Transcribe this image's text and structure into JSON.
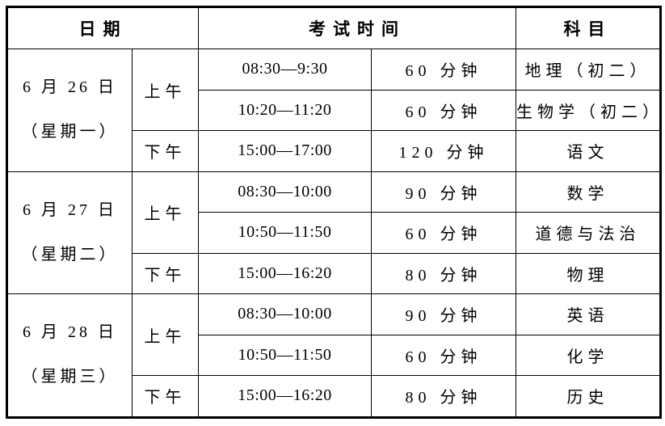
{
  "table": {
    "headers": {
      "date": "日期",
      "exam_time": "考试时间",
      "subject": "科目"
    },
    "groups": [
      {
        "date_line1": "6 月 26 日",
        "date_line2": "（星期一）",
        "sessions": [
          {
            "period": "上午",
            "rows": [
              {
                "time": "08:30—9:30",
                "duration": "60 分钟",
                "subject": "地理（初二）"
              },
              {
                "time": "10:20—11:20",
                "duration": "60 分钟",
                "subject": "生物学（初二）"
              }
            ]
          },
          {
            "period": "下午",
            "rows": [
              {
                "time": "15:00—17:00",
                "duration": "120 分钟",
                "subject": "语文"
              }
            ]
          }
        ]
      },
      {
        "date_line1": "6 月 27 日",
        "date_line2": "（星期二）",
        "sessions": [
          {
            "period": "上午",
            "rows": [
              {
                "time": "08:30—10:00",
                "duration": "90 分钟",
                "subject": "数学"
              },
              {
                "time": "10:50—11:50",
                "duration": "60 分钟",
                "subject": "道德与法治"
              }
            ]
          },
          {
            "period": "下午",
            "rows": [
              {
                "time": "15:00—16:20",
                "duration": "80 分钟",
                "subject": "物理"
              }
            ]
          }
        ]
      },
      {
        "date_line1": "6 月 28 日",
        "date_line2": "（星期三）",
        "sessions": [
          {
            "period": "上午",
            "rows": [
              {
                "time": "08:30—10:00",
                "duration": "90 分钟",
                "subject": "英语"
              },
              {
                "time": "10:50—11:50",
                "duration": "60 分钟",
                "subject": "化学"
              }
            ]
          },
          {
            "period": "下午",
            "rows": [
              {
                "time": "15:00—16:20",
                "duration": "80 分钟",
                "subject": "历史"
              }
            ]
          }
        ]
      }
    ]
  }
}
